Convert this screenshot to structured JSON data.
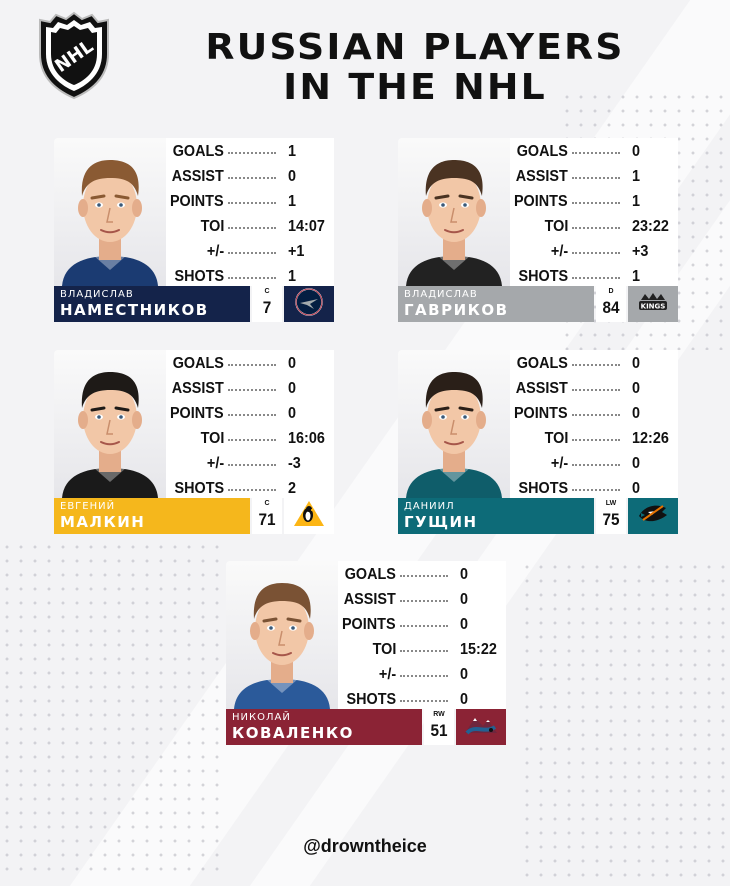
{
  "title": {
    "line1": "RUSSIAN PLAYERS",
    "line2": "IN THE NHL"
  },
  "logo": {
    "text": "NHL",
    "icon": "nhl-shield-logo"
  },
  "stat_labels": [
    "GOALS",
    "ASSIST",
    "POINTS",
    "TOI",
    "+/-",
    "SHOTS"
  ],
  "players": [
    {
      "first_name": "ВЛАДИСЛАВ",
      "last_name": "НАМЕСТНИКОВ",
      "position": "C",
      "number": "7",
      "team_logo": "winnipeg-jets-logo",
      "bar_color": "#14234a",
      "team_bg": "#14234a",
      "jersey_color": "#1b3b72",
      "hair_color": "#8a5a33",
      "stats": [
        "1",
        "0",
        "1",
        "14:07",
        "+1",
        "1"
      ]
    },
    {
      "first_name": "ВЛАДИСЛАВ",
      "last_name": "ГАВРИКОВ",
      "position": "D",
      "number": "84",
      "team_logo": "los-angeles-kings-logo",
      "bar_color": "#a5a8ab",
      "team_bg": "#a5a8ab",
      "jersey_color": "#222222",
      "hair_color": "#4a3322",
      "stats": [
        "0",
        "1",
        "1",
        "23:22",
        "+3",
        "1"
      ]
    },
    {
      "first_name": "ЕВГЕНИЙ",
      "last_name": "МАЛКИН",
      "position": "C",
      "number": "71",
      "team_logo": "pittsburgh-penguins-logo",
      "bar_color": "#f5b71c",
      "team_bg": "#ffffff",
      "jersey_color": "#1a1a1a",
      "hair_color": "#1e1a17",
      "stats": [
        "0",
        "0",
        "0",
        "16:06",
        "-3",
        "2"
      ]
    },
    {
      "first_name": "ДАНИИЛ",
      "last_name": "ГУЩИН",
      "position": "LW",
      "number": "75",
      "team_logo": "san-jose-sharks-logo",
      "bar_color": "#0d6b78",
      "team_bg": "#0d6b78",
      "jersey_color": "#0f5d6a",
      "hair_color": "#2a1f18",
      "stats": [
        "0",
        "0",
        "0",
        "12:26",
        "0",
        "0"
      ]
    },
    {
      "first_name": "НИКОЛАЙ",
      "last_name": "КОВАЛЕНКО",
      "position": "RW",
      "number": "51",
      "team_logo": "colorado-avalanche-logo",
      "bar_color": "#8b2335",
      "team_bg": "#8b2335",
      "jersey_color": "#2b5a9a",
      "hair_color": "#7a5234",
      "stats": [
        "0",
        "0",
        "0",
        "15:22",
        "0",
        "0"
      ]
    }
  ],
  "handle": "@drowntheice"
}
